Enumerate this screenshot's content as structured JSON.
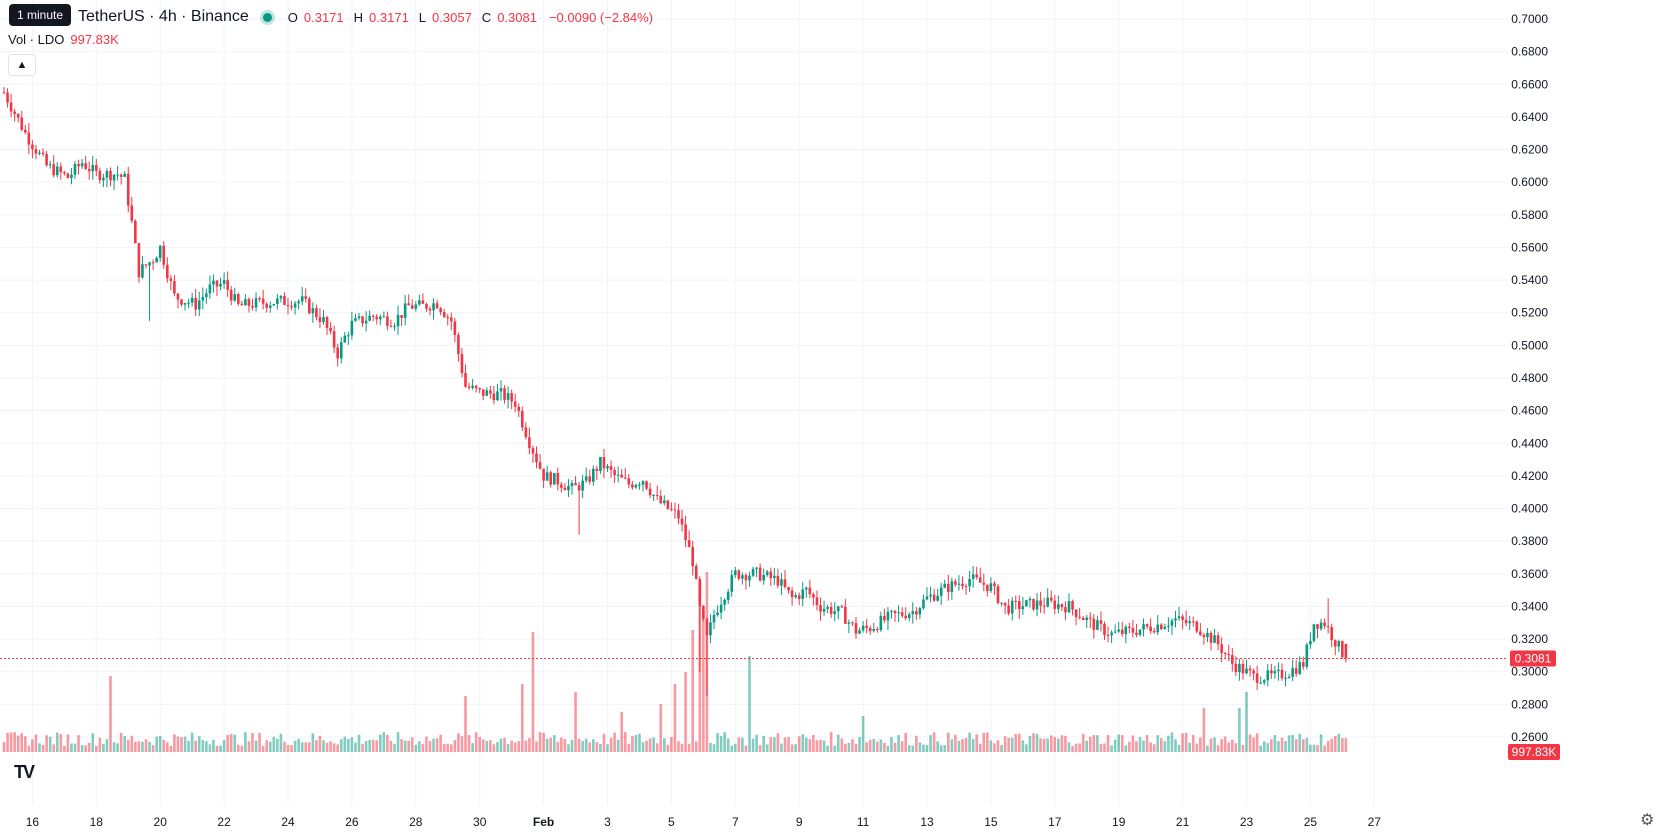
{
  "header": {
    "title": "TetherUS · 4h · Binance",
    "tooltip": "1 minute",
    "ohlc": [
      {
        "label": "O",
        "value": "0.3171"
      },
      {
        "label": "H",
        "value": "0.3171"
      },
      {
        "label": "L",
        "value": "0.3057"
      },
      {
        "label": "C",
        "value": "0.3081"
      }
    ],
    "change": "−0.0090 (−2.84%)",
    "status_color": "#089981"
  },
  "volume_legend": {
    "label": "Vol · LDO",
    "value": "997.83K"
  },
  "icons": {
    "collapse": "chevron-up-icon",
    "logo": "tradingview-logo-icon",
    "settings": "gear-icon"
  },
  "logo_text": "TV",
  "colors": {
    "up": "#089981",
    "down": "#f23645",
    "up_vol": "rgba(8,153,129,0.5)",
    "down_vol": "rgba(242,54,69,0.5)",
    "grid": "#f0f3fa"
  },
  "chart_data": {
    "type": "candlestick",
    "interval": "4h",
    "price_range": [
      0.26,
      0.7
    ],
    "x_range": [
      0,
      367
    ],
    "y_ticks": [
      "0.7000",
      "0.6800",
      "0.6600",
      "0.6400",
      "0.6200",
      "0.6000",
      "0.5800",
      "0.5600",
      "0.5400",
      "0.5200",
      "0.5000",
      "0.4800",
      "0.4600",
      "0.4400",
      "0.4200",
      "0.4000",
      "0.3800",
      "0.3600",
      "0.3400",
      "0.3200",
      "0.3000",
      "0.2800",
      "0.2600"
    ],
    "x_ticks": [
      {
        "label": "16",
        "i": 8
      },
      {
        "label": "18",
        "i": 26
      },
      {
        "label": "20",
        "i": 44
      },
      {
        "label": "22",
        "i": 62
      },
      {
        "label": "24",
        "i": 80
      },
      {
        "label": "26",
        "i": 98
      },
      {
        "label": "28",
        "i": 116
      },
      {
        "label": "30",
        "i": 134
      },
      {
        "label": "Feb",
        "i": 152,
        "bold": true
      },
      {
        "label": "3",
        "i": 170
      },
      {
        "label": "5",
        "i": 188
      },
      {
        "label": "7",
        "i": 206
      },
      {
        "label": "9",
        "i": 224
      },
      {
        "label": "11",
        "i": 242
      },
      {
        "label": "13",
        "i": 260
      },
      {
        "label": "15",
        "i": 278
      },
      {
        "label": "17",
        "i": 296
      },
      {
        "label": "19",
        "i": 314
      },
      {
        "label": "21",
        "i": 332
      },
      {
        "label": "23",
        "i": 350
      },
      {
        "label": "25",
        "i": 368
      },
      {
        "label": "27",
        "i": 386
      }
    ],
    "last_price": "0.3081",
    "last_price_value": 0.3081,
    "last_volume": "997.83K",
    "anchors": [
      [
        0,
        0.655
      ],
      [
        6,
        0.63
      ],
      [
        12,
        0.61
      ],
      [
        18,
        0.603
      ],
      [
        22,
        0.612
      ],
      [
        26,
        0.605
      ],
      [
        32,
        0.605
      ],
      [
        34,
        0.602
      ],
      [
        36,
        0.575
      ],
      [
        38,
        0.545
      ],
      [
        42,
        0.553
      ],
      [
        44,
        0.56
      ],
      [
        48,
        0.53
      ],
      [
        54,
        0.525
      ],
      [
        58,
        0.535
      ],
      [
        62,
        0.538
      ],
      [
        66,
        0.524
      ],
      [
        72,
        0.526
      ],
      [
        78,
        0.527
      ],
      [
        84,
        0.527
      ],
      [
        90,
        0.515
      ],
      [
        94,
        0.495
      ],
      [
        96,
        0.505
      ],
      [
        98,
        0.513
      ],
      [
        104,
        0.518
      ],
      [
        110,
        0.515
      ],
      [
        114,
        0.524
      ],
      [
        118,
        0.524
      ],
      [
        122,
        0.526
      ],
      [
        126,
        0.515
      ],
      [
        130,
        0.475
      ],
      [
        134,
        0.471
      ],
      [
        140,
        0.47
      ],
      [
        144,
        0.465
      ],
      [
        148,
        0.441
      ],
      [
        152,
        0.42
      ],
      [
        156,
        0.417
      ],
      [
        160,
        0.412
      ],
      [
        164,
        0.416
      ],
      [
        168,
        0.428
      ],
      [
        172,
        0.42
      ],
      [
        176,
        0.415
      ],
      [
        180,
        0.418
      ],
      [
        184,
        0.405
      ],
      [
        190,
        0.395
      ],
      [
        194,
        0.368
      ],
      [
        196,
        0.338
      ],
      [
        198,
        0.32
      ],
      [
        200,
        0.335
      ],
      [
        202,
        0.344
      ],
      [
        206,
        0.36
      ],
      [
        212,
        0.36
      ],
      [
        218,
        0.356
      ],
      [
        222,
        0.345
      ],
      [
        226,
        0.35
      ],
      [
        230,
        0.34
      ],
      [
        236,
        0.336
      ],
      [
        240,
        0.325
      ],
      [
        244,
        0.327
      ],
      [
        250,
        0.334
      ],
      [
        256,
        0.337
      ],
      [
        260,
        0.345
      ],
      [
        266,
        0.352
      ],
      [
        272,
        0.357
      ],
      [
        278,
        0.352
      ],
      [
        282,
        0.339
      ],
      [
        288,
        0.341
      ],
      [
        294,
        0.342
      ],
      [
        300,
        0.34
      ],
      [
        306,
        0.33
      ],
      [
        312,
        0.323
      ],
      [
        318,
        0.325
      ],
      [
        324,
        0.328
      ],
      [
        330,
        0.332
      ],
      [
        336,
        0.328
      ],
      [
        342,
        0.317
      ],
      [
        346,
        0.305
      ],
      [
        352,
        0.297
      ],
      [
        358,
        0.297
      ],
      [
        362,
        0.3
      ],
      [
        366,
        0.305
      ],
      [
        369,
        0.33
      ],
      [
        372,
        0.33
      ],
      [
        376,
        0.315
      ],
      [
        378,
        0.308
      ]
    ],
    "volume_peaks": [
      {
        "i": 30,
        "rel": 0.38
      },
      {
        "i": 130,
        "rel": 0.28
      },
      {
        "i": 146,
        "rel": 0.34
      },
      {
        "i": 149,
        "rel": 0.6
      },
      {
        "i": 161,
        "rel": 0.3
      },
      {
        "i": 174,
        "rel": 0.2
      },
      {
        "i": 185,
        "rel": 0.24
      },
      {
        "i": 189,
        "rel": 0.34
      },
      {
        "i": 192,
        "rel": 0.4
      },
      {
        "i": 194,
        "rel": 0.61
      },
      {
        "i": 196,
        "rel": 0.85
      },
      {
        "i": 197,
        "rel": 0.7
      },
      {
        "i": 198,
        "rel": 0.9
      },
      {
        "i": 210,
        "rel": 0.48
      },
      {
        "i": 242,
        "rel": 0.18
      },
      {
        "i": 338,
        "rel": 0.22
      },
      {
        "i": 348,
        "rel": 0.22
      },
      {
        "i": 350,
        "rel": 0.3
      }
    ]
  }
}
